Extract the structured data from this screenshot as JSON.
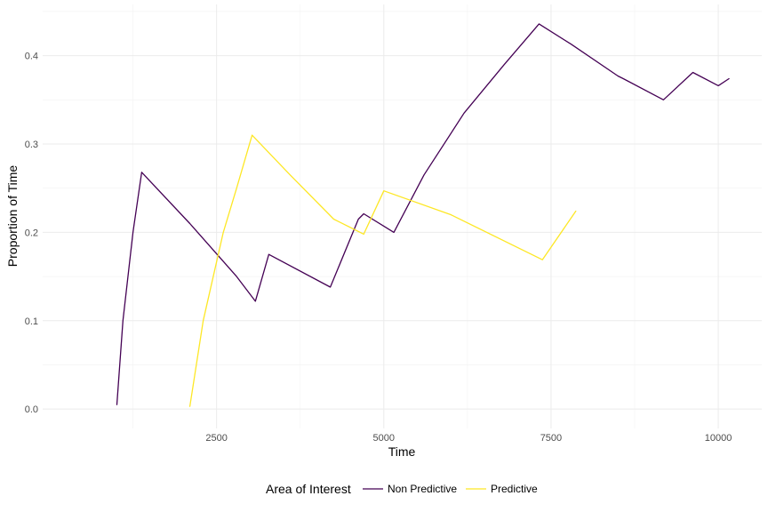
{
  "chart_data": {
    "type": "line",
    "title": "",
    "xlabel": "Time",
    "ylabel": "Proportion of Time",
    "xlim": [
      -100,
      10650
    ],
    "ylim": [
      -0.022,
      0.458
    ],
    "x_ticks": [
      2500,
      5000,
      7500,
      10000
    ],
    "x_tick_labels": [
      "2500",
      "5000",
      "7500",
      "10000"
    ],
    "y_ticks": [
      0.0,
      0.1,
      0.2,
      0.3,
      0.4
    ],
    "y_tick_labels": [
      "0.0",
      "0.1",
      "0.2",
      "0.3",
      "0.4"
    ],
    "grid": true,
    "legend": {
      "title": "Area of Interest",
      "position": "bottom"
    },
    "series": [
      {
        "name": "Non Predictive",
        "color": "#440154",
        "x": [
          1010,
          1100,
          1250,
          1380,
          2100,
          2800,
          3080,
          3280,
          4200,
          4620,
          4700,
          5150,
          5600,
          6200,
          6800,
          7320,
          7800,
          8500,
          8580,
          9180,
          9620,
          10000,
          10160
        ],
        "y": [
          0.005,
          0.1,
          0.2,
          0.268,
          0.21,
          0.15,
          0.122,
          0.175,
          0.138,
          0.215,
          0.221,
          0.2,
          0.265,
          0.335,
          0.39,
          0.436,
          0.413,
          0.377,
          0.374,
          0.35,
          0.381,
          0.366,
          0.374
        ]
      },
      {
        "name": "Predictive",
        "color": "#FDE725",
        "x": [
          2100,
          2300,
          2600,
          2800,
          3030,
          3600,
          4250,
          4700,
          5000,
          6000,
          7370,
          7870
        ],
        "y": [
          0.003,
          0.1,
          0.2,
          0.25,
          0.31,
          0.265,
          0.215,
          0.198,
          0.247,
          0.22,
          0.169,
          0.224
        ]
      }
    ]
  }
}
